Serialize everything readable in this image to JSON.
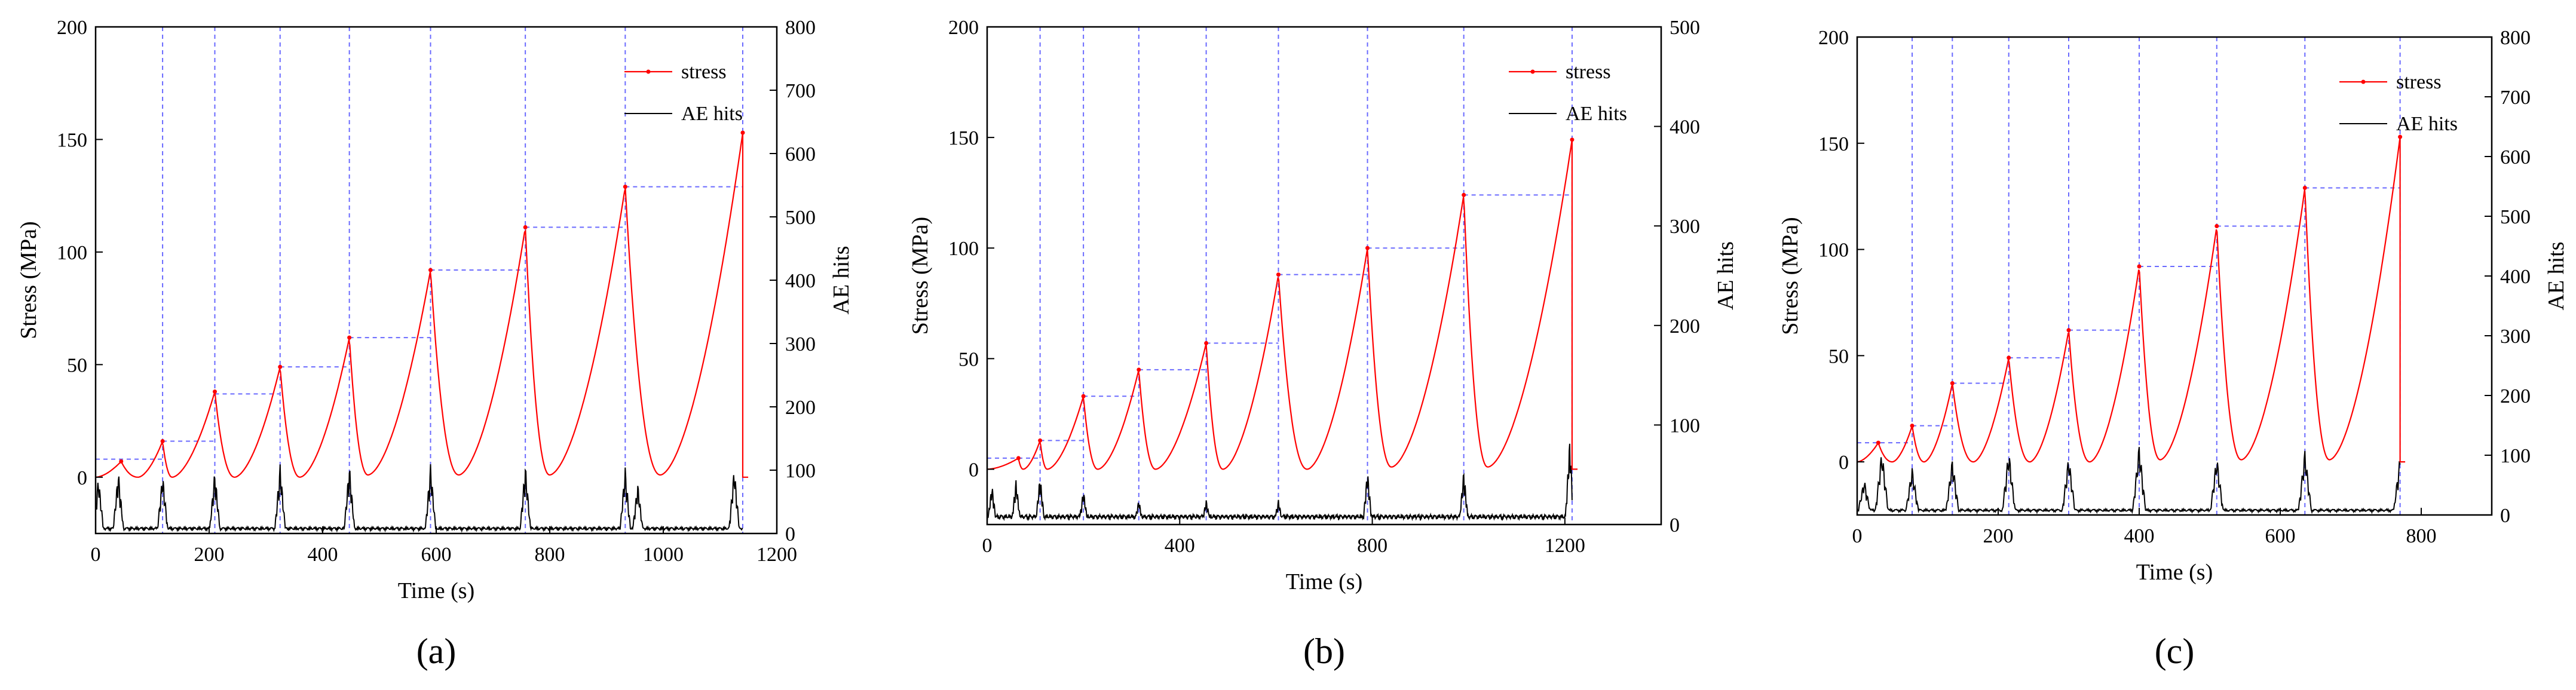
{
  "figure": {
    "panels": [
      "(a)",
      "(b)",
      "(c)"
    ]
  },
  "colors": {
    "stress": "#ff0000",
    "ae": "#000000",
    "guide": "#6a6aff",
    "axis": "#000000"
  },
  "chart_data": [
    {
      "type": "line",
      "panel_label": "(a)",
      "xlabel": "Time (s)",
      "ylabel": "Stress (MPa)",
      "y2label": "AE hits",
      "xlim": [
        0,
        1200
      ],
      "ylim": [
        -25,
        200
      ],
      "y2lim": [
        0,
        800
      ],
      "xticks": [
        0,
        200,
        400,
        600,
        800,
        1000,
        1200
      ],
      "yticks": [
        0,
        50,
        100,
        150,
        200
      ],
      "y2ticks": [
        0,
        100,
        200,
        300,
        400,
        500,
        600,
        700,
        800
      ],
      "legend": [
        "stress",
        "AE hits"
      ],
      "legend_position": "top-right",
      "cycles": [
        {
          "t": 0,
          "peak_t": 45,
          "base": 0,
          "peak": 7
        },
        {
          "t": 75,
          "peak_t": 118,
          "base": 0,
          "peak": 16
        },
        {
          "t": 135,
          "peak_t": 210,
          "base": 0,
          "peak": 38
        },
        {
          "t": 245,
          "peak_t": 325,
          "base": 0,
          "peak": 49
        },
        {
          "t": 360,
          "peak_t": 447,
          "base": 0,
          "peak": 62
        },
        {
          "t": 480,
          "peak_t": 590,
          "base": 1,
          "peak": 92
        },
        {
          "t": 640,
          "peak_t": 757,
          "base": 1,
          "peak": 111
        },
        {
          "t": 800,
          "peak_t": 933,
          "base": 1,
          "peak": 129
        },
        {
          "t": 995,
          "peak_t": 1140,
          "base": 1,
          "peak": 153
        }
      ],
      "guide_times": [
        118,
        210,
        325,
        447,
        590,
        757,
        933,
        1140
      ],
      "guide_levels": [
        8,
        16,
        37,
        49,
        62,
        92,
        111,
        129
      ],
      "ae_bursts": [
        {
          "t": 5,
          "h": 90
        },
        {
          "t": 40,
          "h": 100
        },
        {
          "t": 118,
          "h": 95
        },
        {
          "t": 210,
          "h": 100
        },
        {
          "t": 325,
          "h": 110
        },
        {
          "t": 447,
          "h": 110
        },
        {
          "t": 590,
          "h": 110
        },
        {
          "t": 757,
          "h": 110
        },
        {
          "t": 933,
          "h": 105
        },
        {
          "t": 955,
          "h": 80
        },
        {
          "t": 1125,
          "h": 105
        }
      ]
    },
    {
      "type": "line",
      "panel_label": "(b)",
      "xlabel": "Time (s)",
      "ylabel": "Stress (MPa)",
      "y2label": "AE hits",
      "xlim": [
        0,
        1400
      ],
      "ylim": [
        -25,
        200
      ],
      "y2lim": [
        0,
        500
      ],
      "xticks": [
        0,
        400,
        800,
        1200
      ],
      "yticks": [
        0,
        50,
        100,
        150,
        200
      ],
      "y2ticks": [
        0,
        100,
        200,
        300,
        400,
        500
      ],
      "legend": [
        "stress",
        "AE hits"
      ],
      "legend_position": "top-right",
      "cycles": [
        {
          "t": 0,
          "peak_t": 65,
          "base": 0,
          "peak": 5
        },
        {
          "t": 75,
          "peak_t": 110,
          "base": 0,
          "peak": 13
        },
        {
          "t": 125,
          "peak_t": 200,
          "base": 0,
          "peak": 33
        },
        {
          "t": 230,
          "peak_t": 315,
          "base": 0,
          "peak": 45
        },
        {
          "t": 350,
          "peak_t": 455,
          "base": 0,
          "peak": 57
        },
        {
          "t": 490,
          "peak_t": 605,
          "base": 0,
          "peak": 88
        },
        {
          "t": 665,
          "peak_t": 790,
          "base": 0,
          "peak": 100
        },
        {
          "t": 840,
          "peak_t": 990,
          "base": 1,
          "peak": 124
        },
        {
          "t": 1040,
          "peak_t": 1215,
          "base": 1,
          "peak": 149
        }
      ],
      "guide_times": [
        110,
        200,
        315,
        455,
        605,
        790,
        990,
        1215
      ],
      "guide_levels": [
        5,
        13,
        33,
        45,
        57,
        88,
        100,
        124
      ],
      "ae_bursts": [
        {
          "t": 10,
          "h": 40
        },
        {
          "t": 60,
          "h": 45
        },
        {
          "t": 110,
          "h": 50
        },
        {
          "t": 200,
          "h": 35
        },
        {
          "t": 315,
          "h": 25
        },
        {
          "t": 455,
          "h": 25
        },
        {
          "t": 605,
          "h": 25
        },
        {
          "t": 790,
          "h": 55
        },
        {
          "t": 990,
          "h": 55
        },
        {
          "t": 1210,
          "h": 85
        }
      ]
    },
    {
      "type": "line",
      "panel_label": "(c)",
      "xlabel": "Time (s)",
      "ylabel": "Stress (MPa)",
      "y2label": "AE hits",
      "xlim": [
        0,
        900
      ],
      "ylim": [
        -25,
        200
      ],
      "y2lim": [
        0,
        800
      ],
      "xticks": [
        0,
        200,
        400,
        600,
        800
      ],
      "yticks": [
        0,
        50,
        100,
        150,
        200
      ],
      "y2ticks": [
        0,
        100,
        200,
        300,
        400,
        500,
        600,
        700,
        800
      ],
      "legend": [
        "stress",
        "AE hits"
      ],
      "legend_position": "top-right",
      "cycles": [
        {
          "t": 0,
          "peak_t": 30,
          "base": 0,
          "peak": 9
        },
        {
          "t": 50,
          "peak_t": 78,
          "base": 0,
          "peak": 17
        },
        {
          "t": 95,
          "peak_t": 135,
          "base": 0,
          "peak": 37
        },
        {
          "t": 165,
          "peak_t": 215,
          "base": 0,
          "peak": 49
        },
        {
          "t": 245,
          "peak_t": 300,
          "base": 0,
          "peak": 62
        },
        {
          "t": 330,
          "peak_t": 400,
          "base": 0,
          "peak": 92
        },
        {
          "t": 430,
          "peak_t": 510,
          "base": 1,
          "peak": 111
        },
        {
          "t": 545,
          "peak_t": 635,
          "base": 1,
          "peak": 129
        },
        {
          "t": 670,
          "peak_t": 770,
          "base": 1,
          "peak": 153
        }
      ],
      "guide_times": [
        78,
        135,
        215,
        300,
        400,
        510,
        635,
        770
      ],
      "guide_levels": [
        9,
        17,
        37,
        49,
        62,
        92,
        111,
        129
      ],
      "ae_bursts": [
        {
          "t": 10,
          "h": 60
        },
        {
          "t": 35,
          "h": 110
        },
        {
          "t": 78,
          "h": 80
        },
        {
          "t": 135,
          "h": 95
        },
        {
          "t": 215,
          "h": 110
        },
        {
          "t": 300,
          "h": 100
        },
        {
          "t": 400,
          "h": 120
        },
        {
          "t": 510,
          "h": 100
        },
        {
          "t": 635,
          "h": 110
        },
        {
          "t": 770,
          "h": 100
        }
      ]
    }
  ]
}
